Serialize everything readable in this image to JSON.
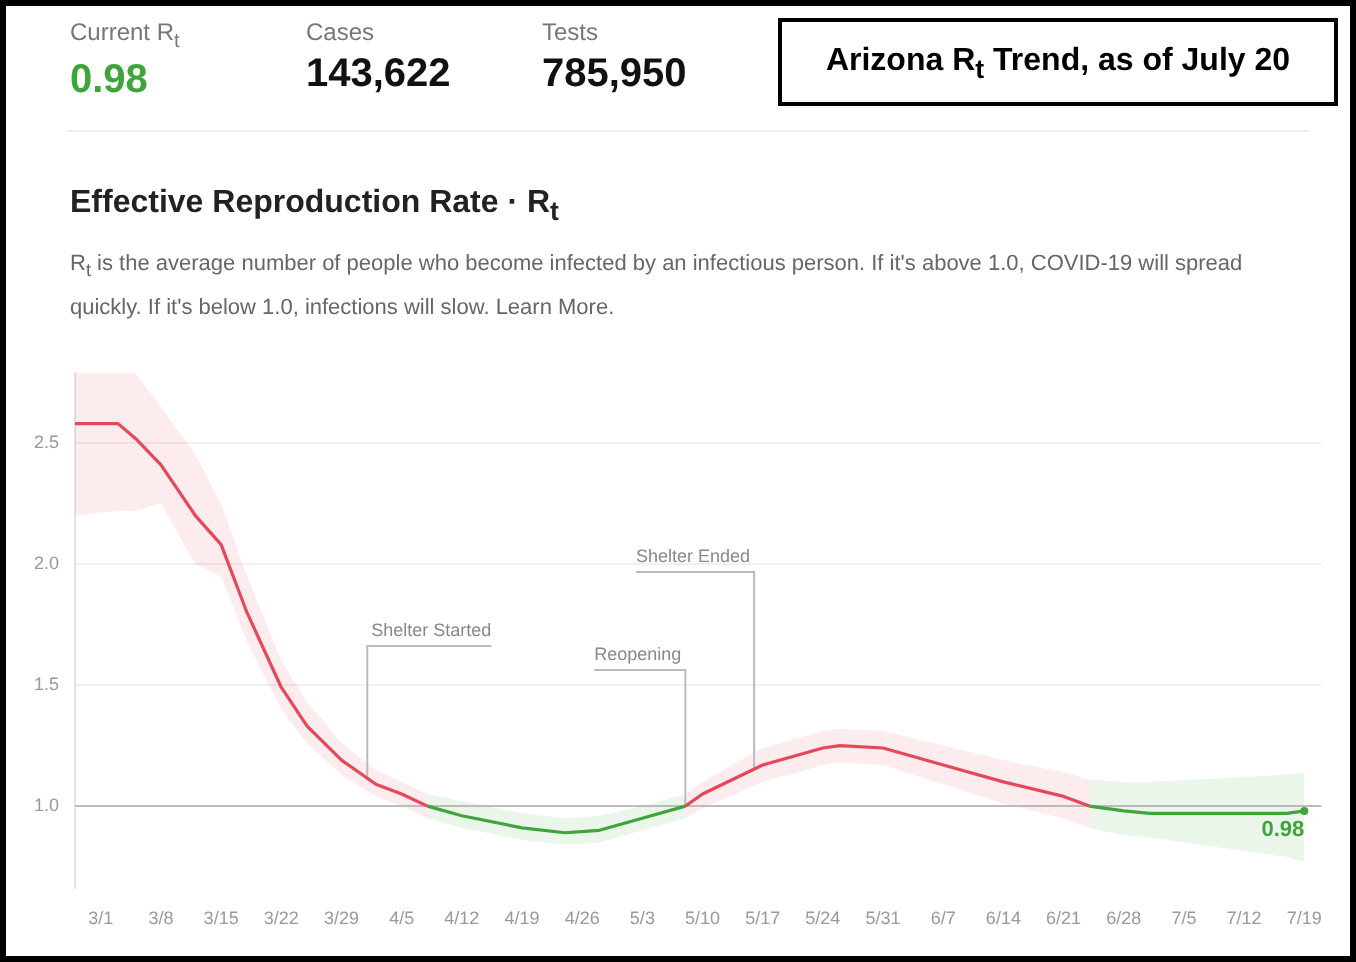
{
  "chart_data": {
    "type": "line",
    "title": "Arizona R$_{t}$ Trend, as of July 20",
    "subtitle": "Effective Reproduction Rate · R$_{t}$",
    "annotations": [
      "Current R$_{t}$",
      "0.98",
      "Cases",
      "143,622",
      "Tests",
      "785,950",
      "R$_{t}$ is the average number of people who become infected by an infectious person. If it's above 1.0, COVID-19 will spread quickly. If it's below 1.0, infections will slow. Learn More."
    ],
    "x": [
      "--02-26",
      "--03-03",
      "--03-05",
      "--03-08",
      "--03-12",
      "--03-15",
      "--03-18",
      "--03-22",
      "--03-25",
      "--03-29",
      "--04-02",
      "--04-05",
      "--04-08",
      "--04-12",
      "--04-19",
      "--04-24",
      "--04-28",
      "--05-03",
      "--05-08",
      "--05-10",
      "--05-17",
      "--05-24",
      "--05-26",
      "--05-31",
      "--06-07",
      "--06-14",
      "--06-21",
      "--06-24",
      "--06-28",
      "--07-01",
      "--07-17",
      "--07-19"
    ],
    "series": [
      {
        "color": "#e4485a",
        "values": [
          2.58,
          2.58,
          2.52,
          2.41,
          2.2,
          2.08,
          1.8,
          1.49,
          1.33,
          1.19,
          1.09,
          1.05,
          1.0,
          null,
          null,
          null,
          null,
          null,
          1.0,
          1.05,
          1.17,
          1.24,
          1.25,
          1.24,
          1.17,
          1.1,
          1.04,
          1.0,
          null,
          null,
          null,
          null
        ],
        "lower": [
          2.2,
          2.22,
          2.22,
          2.25,
          2.0,
          1.95,
          1.68,
          1.4,
          1.26,
          1.13,
          1.04,
          1.0,
          0.95,
          null,
          null,
          null,
          null,
          null,
          0.95,
          0.99,
          1.1,
          1.17,
          1.18,
          1.17,
          1.09,
          1.01,
          0.95,
          0.91,
          null,
          null,
          null,
          null
        ],
        "upper": [
          2.79,
          2.79,
          2.79,
          2.65,
          2.45,
          2.25,
          1.95,
          1.6,
          1.43,
          1.26,
          1.15,
          1.1,
          1.05,
          null,
          null,
          null,
          null,
          null,
          1.05,
          1.1,
          1.24,
          1.31,
          1.32,
          1.31,
          1.25,
          1.19,
          1.14,
          1.11,
          null,
          null,
          null,
          null
        ]
      },
      {
        "color": "#3ea53b",
        "values": [
          null,
          null,
          null,
          null,
          null,
          null,
          null,
          null,
          null,
          null,
          null,
          null,
          1.0,
          0.96,
          0.91,
          0.89,
          0.9,
          0.95,
          1.0,
          null,
          null,
          null,
          null,
          null,
          null,
          null,
          null,
          1.0,
          0.98,
          0.97,
          0.97,
          0.98
        ],
        "lower": [
          null,
          null,
          null,
          null,
          null,
          null,
          null,
          null,
          null,
          null,
          null,
          null,
          0.95,
          0.91,
          0.86,
          0.84,
          0.85,
          0.9,
          0.95,
          null,
          null,
          null,
          null,
          null,
          null,
          null,
          null,
          0.91,
          0.88,
          0.87,
          0.79,
          0.77
        ],
        "upper": [
          null,
          null,
          null,
          null,
          null,
          null,
          null,
          null,
          null,
          null,
          null,
          null,
          1.05,
          1.02,
          0.97,
          0.95,
          0.96,
          1.0,
          1.05,
          null,
          null,
          null,
          null,
          null,
          null,
          null,
          null,
          1.11,
          1.1,
          1.1,
          1.13,
          1.14
        ],
        "value_labels": [
          null,
          null,
          null,
          null,
          null,
          null,
          null,
          null,
          null,
          null,
          null,
          null,
          null,
          null,
          null,
          null,
          null,
          null,
          null,
          null,
          null,
          null,
          null,
          null,
          null,
          null,
          null,
          null,
          null,
          null,
          null,
          "0.98"
        ]
      }
    ],
    "xlim": [
      "--02-26",
      "--07-21"
    ],
    "xticks": [
      {
        "value": "--03-01",
        "label": "3/1"
      },
      {
        "value": "--03-08",
        "label": "3/8"
      },
      {
        "value": "--03-15",
        "label": "3/15"
      },
      {
        "value": "--03-22",
        "label": "3/22"
      },
      {
        "value": "--03-29",
        "label": "3/29"
      },
      {
        "value": "--04-05",
        "label": "4/5"
      },
      {
        "value": "--04-12",
        "label": "4/12"
      },
      {
        "value": "--04-19",
        "label": "4/19"
      },
      {
        "value": "--04-26",
        "label": "4/26"
      },
      {
        "value": "--05-03",
        "label": "5/3"
      },
      {
        "value": "--05-10",
        "label": "5/10"
      },
      {
        "value": "--05-17",
        "label": "5/17"
      },
      {
        "value": "--05-24",
        "label": "5/24"
      },
      {
        "value": "--05-31",
        "label": "5/31"
      },
      {
        "value": "--06-07",
        "label": "6/7"
      },
      {
        "value": "--06-14",
        "label": "6/14"
      },
      {
        "value": "--06-21",
        "label": "6/21"
      },
      {
        "value": "--06-28",
        "label": "6/28"
      },
      {
        "value": "--07-05",
        "label": "7/5"
      },
      {
        "value": "--07-12",
        "label": "7/12"
      },
      {
        "value": "--07-19",
        "label": "7/19"
      }
    ],
    "ylim": [
      0.66,
      2.79
    ],
    "yticks": [
      {
        "value": 1,
        "label": "1.0"
      },
      {
        "value": 1.5,
        "label": "1.5"
      },
      {
        "value": 2,
        "label": "2.0"
      },
      {
        "value": 2.5,
        "label": "2.5"
      }
    ],
    "ref_lines": [
      {
        "axis": "y",
        "value": 1,
        "color": "#bbbbbb"
      },
      {
        "axis": "x",
        "value": "--04-01",
        "label": "Shelter Started",
        "color": "#bbbbbb"
      },
      {
        "axis": "x",
        "value": "--05-08",
        "label": "Reopening",
        "color": "#bbbbbb"
      },
      {
        "axis": "x",
        "value": "--05-16",
        "label": "Shelter Ended",
        "color": "#bbbbbb"
      }
    ],
    "grid": "y",
    "marker": "none",
    "line_style": "solid",
    "legend": false
  }
}
